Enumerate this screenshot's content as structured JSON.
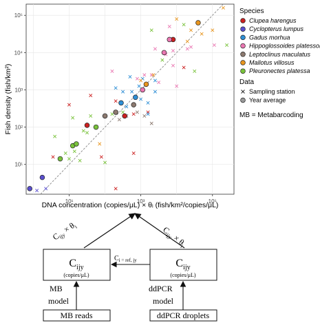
{
  "chart_data": {
    "type": "scatter",
    "xlabel": "DNA concentration (copies/μL) × θᵢ (fish/km²/copies/μL)",
    "ylabel": "Fish density (fish/km²)",
    "x_scale": "log10",
    "y_scale": "log10",
    "xlim_log10": [
      -0.2,
      5.6
    ],
    "ylim_log10": [
      0.2,
      5.3
    ],
    "xticks": [
      {
        "log": 1,
        "label": "10¹"
      },
      {
        "log": 3,
        "label": "10³"
      },
      {
        "log": 5,
        "label": "10⁵"
      }
    ],
    "yticks": [
      {
        "log": 1,
        "label": "10¹"
      },
      {
        "log": 2,
        "label": "10²"
      },
      {
        "log": 3,
        "label": "10³"
      },
      {
        "log": 4,
        "label": "10⁴"
      },
      {
        "log": 5,
        "label": "10⁵"
      }
    ],
    "grid": true,
    "reference_line": "y = x (dashed)",
    "legend_placement": "right",
    "legend": {
      "species_title": "Species",
      "species": [
        {
          "name": "Clupea harengus",
          "color": "#cc2121"
        },
        {
          "name": "Cyclopterus lumpus",
          "color": "#5a4fcf"
        },
        {
          "name": "Gadus morhua",
          "color": "#2e8fd6"
        },
        {
          "name": "Hippoglossoides platessoides",
          "color": "#ea77b2"
        },
        {
          "name": "Leptoclinus maculatus",
          "color": "#8c7a70"
        },
        {
          "name": "Mallotus villosus",
          "color": "#e8951e"
        },
        {
          "name": "Pleuronectes platessa",
          "color": "#79c23b"
        }
      ],
      "data_title": "Data",
      "data_items": [
        {
          "name": "Sampling station",
          "marker": "cross"
        },
        {
          "name": "Year average",
          "marker": "circle"
        }
      ],
      "note": "MB = Metabarcoding"
    },
    "series": [
      {
        "name": "Clupea harengus",
        "color": "#cc2121",
        "year_average": [
          [
            1.5,
            2.05
          ],
          [
            2.55,
            2.3
          ],
          [
            3.9,
            4.35
          ]
        ],
        "stations": [
          [
            1.0,
            2.6
          ],
          [
            1.6,
            2.85
          ],
          [
            2.3,
            2.7
          ],
          [
            2.8,
            1.3
          ],
          [
            3.2,
            2.4
          ],
          [
            2.3,
            0.35
          ],
          [
            1.9,
            1.2
          ],
          [
            2.8,
            2.35
          ],
          [
            4.2,
            3.6
          ],
          [
            0.55,
            1.2
          ]
        ]
      },
      {
        "name": "Cyclopterus lumpus",
        "color": "#5a4fcf",
        "year_average": [
          [
            -0.1,
            0.35
          ],
          [
            0.25,
            0.65
          ]
        ],
        "stations": [
          [
            0.1,
            0.3
          ],
          [
            0.35,
            0.35
          ]
        ]
      },
      {
        "name": "Gadus morhua",
        "color": "#2e8fd6",
        "year_average": [
          [
            2.45,
            2.65
          ],
          [
            2.85,
            2.8
          ]
        ],
        "stations": [
          [
            2.75,
            2.95
          ],
          [
            2.95,
            3.1
          ],
          [
            3.2,
            2.65
          ],
          [
            3.4,
            2.95
          ],
          [
            2.3,
            3.05
          ],
          [
            2.6,
            2.55
          ],
          [
            2.7,
            3.35
          ],
          [
            3.05,
            3.3
          ],
          [
            3.4,
            3.25
          ],
          [
            3.0,
            2.75
          ],
          [
            2.5,
            2.95
          ],
          [
            3.2,
            2.35
          ]
        ]
      },
      {
        "name": "Hippoglossoides platessoides",
        "color": "#ea77b2",
        "year_average": [
          [
            3.65,
            4.0
          ],
          [
            3.8,
            4.35
          ],
          [
            3.05,
            3.0
          ]
        ],
        "stations": [
          [
            3.9,
            3.65
          ],
          [
            3.5,
            3.2
          ],
          [
            4.3,
            4.1
          ],
          [
            3.9,
            4.05
          ],
          [
            5.05,
            4.2
          ],
          [
            3.8,
            4.7
          ],
          [
            3.7,
            3.95
          ],
          [
            2.6,
            2.3
          ],
          [
            2.2,
            3.5
          ],
          [
            3.3,
            3.4
          ],
          [
            4.0,
            3.1
          ],
          [
            3.4,
            4.1
          ],
          [
            3.1,
            3.4
          ],
          [
            2.9,
            3.3
          ],
          [
            4.4,
            4.15
          ]
        ]
      },
      {
        "name": "Leptoclinus maculatus",
        "color": "#8c7a70",
        "year_average": [
          [
            2.0,
            2.3
          ],
          [
            2.3,
            2.4
          ],
          [
            2.8,
            2.6
          ]
        ],
        "stations": [
          [
            2.4,
            2.2
          ],
          [
            2.6,
            2.3
          ],
          [
            2.9,
            2.4
          ],
          [
            3.1,
            2.3
          ],
          [
            3.3,
            2.1
          ]
        ]
      },
      {
        "name": "Mallotus villosus",
        "color": "#e8951e",
        "year_average": [
          [
            3.15,
            3.15
          ],
          [
            4.6,
            4.8
          ]
        ],
        "stations": [
          [
            3.0,
            3.25
          ],
          [
            4.4,
            4.6
          ],
          [
            4.3,
            4.3
          ],
          [
            5.0,
            4.6
          ],
          [
            5.3,
            5.2
          ],
          [
            4.7,
            4.5
          ],
          [
            4.0,
            4.9
          ],
          [
            3.35,
            3.4
          ],
          [
            1.85,
            1.55
          ]
        ]
      },
      {
        "name": "Pleuronectes platessa",
        "color": "#79c23b",
        "year_average": [
          [
            0.75,
            1.15
          ],
          [
            1.1,
            1.5
          ],
          [
            1.2,
            1.55
          ],
          [
            1.75,
            2.0
          ]
        ],
        "stations": [
          [
            0.6,
            1.75
          ],
          [
            1.0,
            1.15
          ],
          [
            1.15,
            1.35
          ],
          [
            1.3,
            1.1
          ],
          [
            1.5,
            1.85
          ],
          [
            1.6,
            2.3
          ],
          [
            1.4,
            1.9
          ],
          [
            0.9,
            1.3
          ],
          [
            2.0,
            1.05
          ],
          [
            1.1,
            2.25
          ],
          [
            2.5,
            2.4
          ],
          [
            3.3,
            4.6
          ],
          [
            3.6,
            3.8
          ],
          [
            4.2,
            4.75
          ],
          [
            5.4,
            4.2
          ],
          [
            4.5,
            3.5
          ],
          [
            2.2,
            2.35
          ]
        ]
      }
    ]
  },
  "diagram": {
    "box_left_main": "C",
    "box_left_sub": "ijy",
    "box_left_unit": "(copies/μL)",
    "box_right_main": "C",
    "box_right_sub": "ijy",
    "box_right_unit": "(copies/μL)",
    "arrow_mid_label_main": "C",
    "arrow_mid_label_sub": "i = ref, jy",
    "left_model_line1": "MB",
    "left_model_line2": "model",
    "right_model_line1": "ddPCR",
    "right_model_line2": "model",
    "left_input": "MB reads",
    "right_input": "ddPCR droplets",
    "left_diag_main": "C",
    "left_diag_sub": "ijy",
    "left_diag_times": " × θ",
    "left_diag_theta_sub": "i",
    "right_diag_main": "C",
    "right_diag_sub": "ijy",
    "right_diag_times": " × θ",
    "right_diag_theta_sub": "i"
  }
}
